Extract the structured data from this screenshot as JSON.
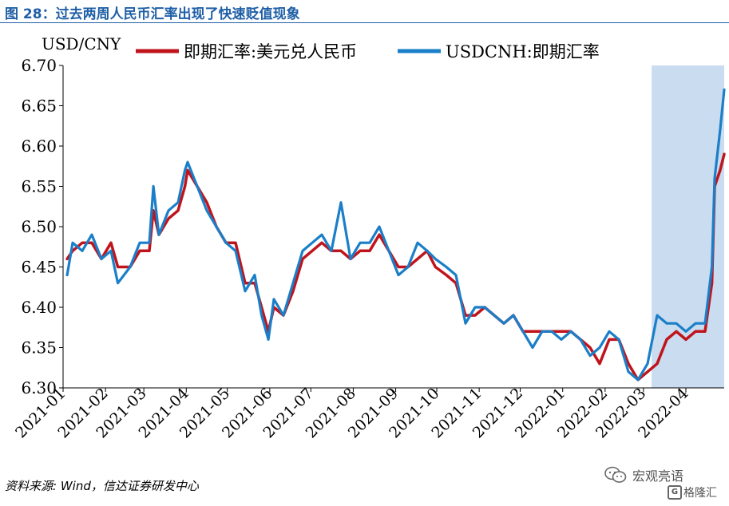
{
  "header": {
    "title": "图 28：过去两周人民币汇率出现了快速贬值现象"
  },
  "footer": {
    "source": "资料来源: Wind，信达证券研发中心",
    "watermark_text": "宏观亮语",
    "logo_text": "格隆汇",
    "logo_glyph": "G"
  },
  "colors": {
    "title": "#1f5fa6",
    "series_cny": "#c0141c",
    "series_cnh": "#1a7fc8",
    "shade": "#c9dcf0"
  },
  "chart_data": {
    "type": "line",
    "title": "",
    "ylabel": "USD/CNY",
    "xlabel": "",
    "ylim": [
      6.3,
      6.7
    ],
    "yticks": [
      "6.30",
      "6.35",
      "6.40",
      "6.45",
      "6.50",
      "6.55",
      "6.60",
      "6.65",
      "6.70"
    ],
    "x_ticks": [
      "2021-01",
      "2021-02",
      "2021-03",
      "2021-04",
      "2021-05",
      "2021-06",
      "2021-07",
      "2021-08",
      "2021-09",
      "2021-10",
      "2021-11",
      "2021-12",
      "2022-01",
      "2022-02",
      "2022-03",
      "2022-04"
    ],
    "x_range": [
      "2021-01-01",
      "2022-04-29"
    ],
    "shaded_region": {
      "start": "2022-03-07",
      "end": "2022-04-29"
    },
    "legend_position": "top",
    "grid": false,
    "series": [
      {
        "name": "即期汇率:美元兑人民币",
        "color": "#c0141c",
        "points": [
          [
            "2021-01-04",
            6.46
          ],
          [
            "2021-01-08",
            6.47
          ],
          [
            "2021-01-15",
            6.48
          ],
          [
            "2021-01-22",
            6.48
          ],
          [
            "2021-01-29",
            6.46
          ],
          [
            "2021-02-05",
            6.48
          ],
          [
            "2021-02-10",
            6.45
          ],
          [
            "2021-02-19",
            6.45
          ],
          [
            "2021-02-26",
            6.47
          ],
          [
            "2021-03-05",
            6.47
          ],
          [
            "2021-03-08",
            6.52
          ],
          [
            "2021-03-12",
            6.49
          ],
          [
            "2021-03-19",
            6.51
          ],
          [
            "2021-03-26",
            6.52
          ],
          [
            "2021-03-31",
            6.55
          ],
          [
            "2021-04-02",
            6.57
          ],
          [
            "2021-04-09",
            6.55
          ],
          [
            "2021-04-16",
            6.53
          ],
          [
            "2021-04-23",
            6.5
          ],
          [
            "2021-04-30",
            6.48
          ],
          [
            "2021-05-07",
            6.48
          ],
          [
            "2021-05-14",
            6.43
          ],
          [
            "2021-05-21",
            6.43
          ],
          [
            "2021-05-26",
            6.4
          ],
          [
            "2021-05-31",
            6.37
          ],
          [
            "2021-06-04",
            6.4
          ],
          [
            "2021-06-11",
            6.39
          ],
          [
            "2021-06-18",
            6.42
          ],
          [
            "2021-06-25",
            6.46
          ],
          [
            "2021-07-02",
            6.47
          ],
          [
            "2021-07-09",
            6.48
          ],
          [
            "2021-07-16",
            6.47
          ],
          [
            "2021-07-23",
            6.47
          ],
          [
            "2021-07-30",
            6.46
          ],
          [
            "2021-08-06",
            6.47
          ],
          [
            "2021-08-13",
            6.47
          ],
          [
            "2021-08-20",
            6.49
          ],
          [
            "2021-08-27",
            6.47
          ],
          [
            "2021-09-03",
            6.45
          ],
          [
            "2021-09-10",
            6.45
          ],
          [
            "2021-09-17",
            6.46
          ],
          [
            "2021-09-24",
            6.47
          ],
          [
            "2021-09-30",
            6.45
          ],
          [
            "2021-10-08",
            6.44
          ],
          [
            "2021-10-15",
            6.43
          ],
          [
            "2021-10-22",
            6.39
          ],
          [
            "2021-10-29",
            6.39
          ],
          [
            "2021-11-05",
            6.4
          ],
          [
            "2021-11-12",
            6.39
          ],
          [
            "2021-11-19",
            6.38
          ],
          [
            "2021-11-26",
            6.39
          ],
          [
            "2021-12-03",
            6.37
          ],
          [
            "2021-12-10",
            6.37
          ],
          [
            "2021-12-17",
            6.37
          ],
          [
            "2021-12-24",
            6.37
          ],
          [
            "2021-12-31",
            6.37
          ],
          [
            "2022-01-07",
            6.37
          ],
          [
            "2022-01-14",
            6.36
          ],
          [
            "2022-01-21",
            6.35
          ],
          [
            "2022-01-28",
            6.33
          ],
          [
            "2022-02-04",
            6.36
          ],
          [
            "2022-02-11",
            6.36
          ],
          [
            "2022-02-18",
            6.33
          ],
          [
            "2022-02-25",
            6.31
          ],
          [
            "2022-03-04",
            6.32
          ],
          [
            "2022-03-11",
            6.33
          ],
          [
            "2022-03-18",
            6.36
          ],
          [
            "2022-03-25",
            6.37
          ],
          [
            "2022-04-01",
            6.36
          ],
          [
            "2022-04-08",
            6.37
          ],
          [
            "2022-04-15",
            6.37
          ],
          [
            "2022-04-20",
            6.43
          ],
          [
            "2022-04-22",
            6.55
          ],
          [
            "2022-04-26",
            6.57
          ],
          [
            "2022-04-29",
            6.59
          ]
        ]
      },
      {
        "name": "USDCNH:即期汇率",
        "color": "#1a7fc8",
        "points": [
          [
            "2021-01-04",
            6.44
          ],
          [
            "2021-01-08",
            6.48
          ],
          [
            "2021-01-15",
            6.47
          ],
          [
            "2021-01-22",
            6.49
          ],
          [
            "2021-01-29",
            6.46
          ],
          [
            "2021-02-05",
            6.47
          ],
          [
            "2021-02-10",
            6.43
          ],
          [
            "2021-02-19",
            6.45
          ],
          [
            "2021-02-26",
            6.48
          ],
          [
            "2021-03-05",
            6.48
          ],
          [
            "2021-03-08",
            6.55
          ],
          [
            "2021-03-12",
            6.49
          ],
          [
            "2021-03-19",
            6.52
          ],
          [
            "2021-03-26",
            6.53
          ],
          [
            "2021-03-31",
            6.57
          ],
          [
            "2021-04-02",
            6.58
          ],
          [
            "2021-04-09",
            6.55
          ],
          [
            "2021-04-16",
            6.52
          ],
          [
            "2021-04-23",
            6.5
          ],
          [
            "2021-04-30",
            6.48
          ],
          [
            "2021-05-07",
            6.47
          ],
          [
            "2021-05-14",
            6.42
          ],
          [
            "2021-05-21",
            6.44
          ],
          [
            "2021-05-26",
            6.39
          ],
          [
            "2021-05-31",
            6.36
          ],
          [
            "2021-06-04",
            6.41
          ],
          [
            "2021-06-11",
            6.39
          ],
          [
            "2021-06-18",
            6.43
          ],
          [
            "2021-06-25",
            6.47
          ],
          [
            "2021-07-02",
            6.48
          ],
          [
            "2021-07-09",
            6.49
          ],
          [
            "2021-07-16",
            6.47
          ],
          [
            "2021-07-23",
            6.53
          ],
          [
            "2021-07-30",
            6.46
          ],
          [
            "2021-08-06",
            6.48
          ],
          [
            "2021-08-13",
            6.48
          ],
          [
            "2021-08-20",
            6.5
          ],
          [
            "2021-08-27",
            6.47
          ],
          [
            "2021-09-03",
            6.44
          ],
          [
            "2021-09-10",
            6.45
          ],
          [
            "2021-09-17",
            6.48
          ],
          [
            "2021-09-24",
            6.47
          ],
          [
            "2021-09-30",
            6.46
          ],
          [
            "2021-10-08",
            6.45
          ],
          [
            "2021-10-15",
            6.44
          ],
          [
            "2021-10-22",
            6.38
          ],
          [
            "2021-10-29",
            6.4
          ],
          [
            "2021-11-05",
            6.4
          ],
          [
            "2021-11-12",
            6.39
          ],
          [
            "2021-11-19",
            6.38
          ],
          [
            "2021-11-26",
            6.39
          ],
          [
            "2021-12-03",
            6.37
          ],
          [
            "2021-12-10",
            6.35
          ],
          [
            "2021-12-17",
            6.37
          ],
          [
            "2021-12-24",
            6.37
          ],
          [
            "2021-12-31",
            6.36
          ],
          [
            "2022-01-07",
            6.37
          ],
          [
            "2022-01-14",
            6.36
          ],
          [
            "2022-01-21",
            6.34
          ],
          [
            "2022-01-28",
            6.35
          ],
          [
            "2022-02-04",
            6.37
          ],
          [
            "2022-02-11",
            6.36
          ],
          [
            "2022-02-18",
            6.32
          ],
          [
            "2022-02-25",
            6.31
          ],
          [
            "2022-03-04",
            6.33
          ],
          [
            "2022-03-11",
            6.39
          ],
          [
            "2022-03-18",
            6.38
          ],
          [
            "2022-03-25",
            6.38
          ],
          [
            "2022-04-01",
            6.37
          ],
          [
            "2022-04-08",
            6.38
          ],
          [
            "2022-04-15",
            6.38
          ],
          [
            "2022-04-20",
            6.45
          ],
          [
            "2022-04-22",
            6.56
          ],
          [
            "2022-04-26",
            6.62
          ],
          [
            "2022-04-29",
            6.67
          ]
        ]
      }
    ]
  }
}
